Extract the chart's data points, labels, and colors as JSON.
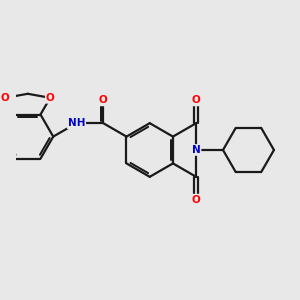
{
  "background_color": "#e8e8e8",
  "bond_color": "#1a1a1a",
  "O_color": "#ff0000",
  "N_color": "#0000cc",
  "figsize": [
    3.0,
    3.0
  ],
  "dpi": 100,
  "xlim": [
    -5.0,
    5.5
  ],
  "ylim": [
    -3.0,
    3.0
  ]
}
